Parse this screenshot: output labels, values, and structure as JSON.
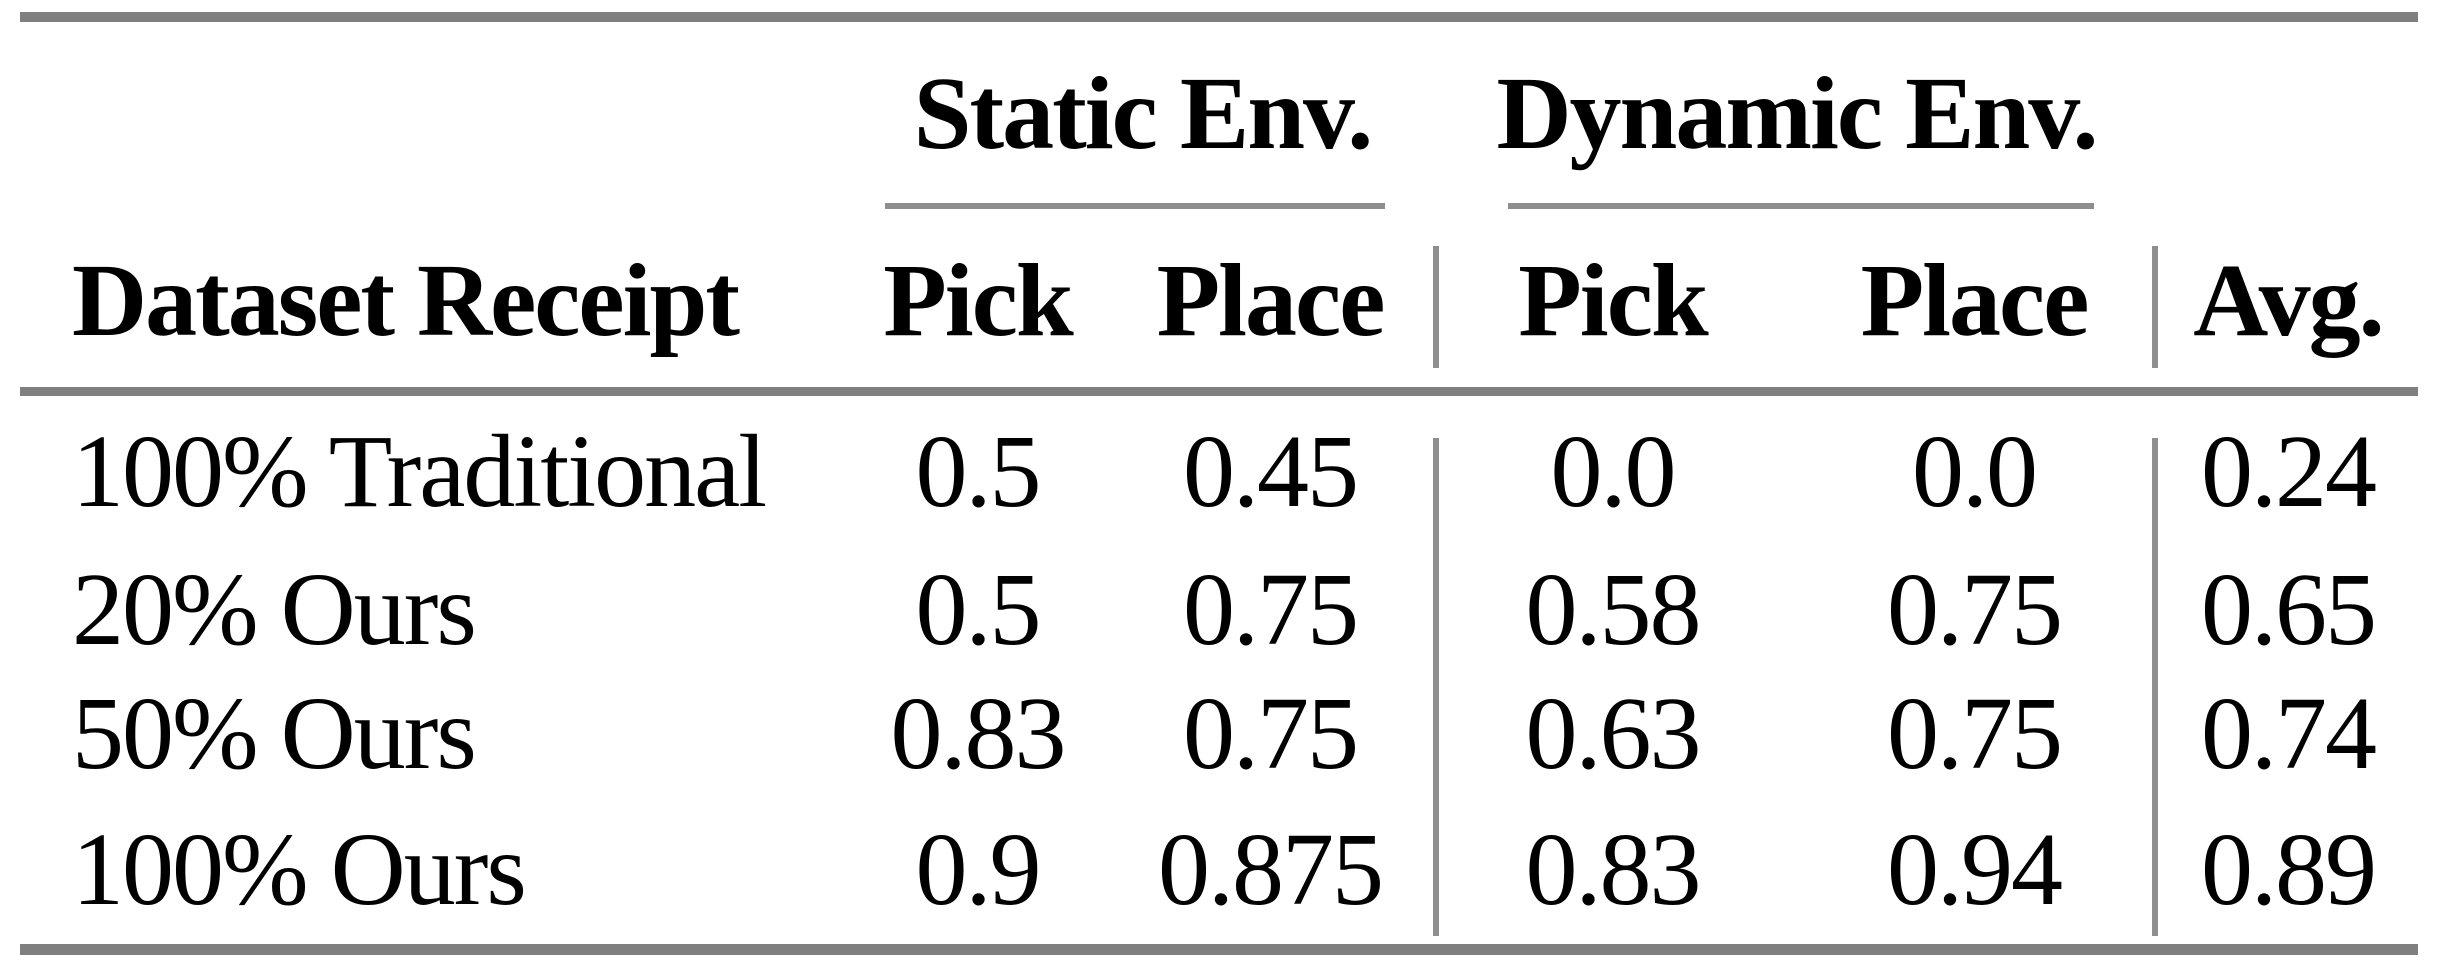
{
  "table": {
    "group_headers": [
      "Static Env.",
      "Dynamic Env."
    ],
    "columns": [
      "Dataset Receipt",
      "Pick",
      "Place",
      "Pick",
      "Place",
      "Avg."
    ],
    "rows": [
      {
        "label": "100% Traditional",
        "values": [
          "0.5",
          "0.45",
          "0.0",
          "0.0",
          "0.24"
        ]
      },
      {
        "label": "20% Ours",
        "values": [
          "0.5",
          "0.75",
          "0.58",
          "0.75",
          "0.65"
        ]
      },
      {
        "label": "50% Ours",
        "values": [
          "0.83",
          "0.75",
          "0.63",
          "0.75",
          "0.74"
        ]
      },
      {
        "label": "100% Ours",
        "values": [
          "0.9",
          "0.875",
          "0.83",
          "0.94",
          "0.89"
        ]
      }
    ]
  },
  "colors": {
    "rule_thick": "#7f7f7f",
    "rule_thin": "#8e8e8e",
    "text": "#000000",
    "background": "#ffffff"
  }
}
